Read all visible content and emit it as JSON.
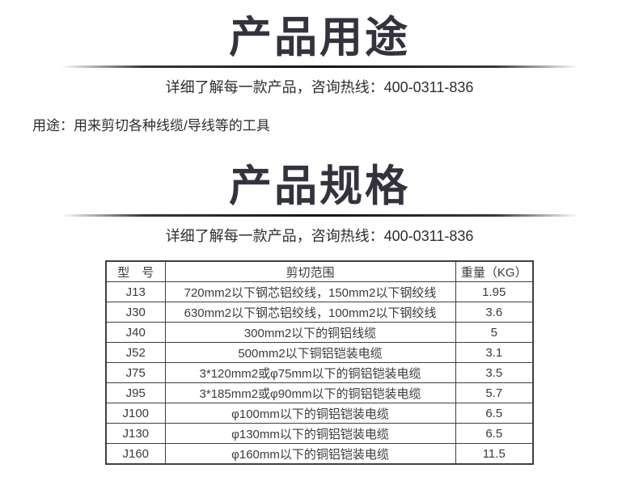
{
  "colors": {
    "title": "#33333d",
    "body_text": "#2d2d2d",
    "table_border": "#3f3f3f",
    "divider": "#141414",
    "background": "#ffffff"
  },
  "usage_section": {
    "title": "产品用途",
    "subtitle": "详细了解每一款产品，咨询热线：400-0311-836",
    "usage_text": "用途：用来剪切各种线缆/导线等的工具"
  },
  "spec_section": {
    "title": "产品规格",
    "subtitle": "详细了解每一款产品，咨询热线：400-0311-836",
    "table": {
      "headers": {
        "model": "型　号",
        "range": "剪切范围",
        "weight": "重量（KG）"
      },
      "rows": [
        {
          "model": "J13",
          "range": "720mm2以下钢芯铝绞线，150mm2以下钢绞线",
          "weight": "1.95"
        },
        {
          "model": "J30",
          "range": "630mm2以下钢芯铝绞线，100mm2以下钢绞线",
          "weight": "3.6"
        },
        {
          "model": "J40",
          "range": "300mm2以下的铜铝线缆",
          "weight": "5"
        },
        {
          "model": "J52",
          "range": "500mm2以下铜铝铠装电缆",
          "weight": "3.1"
        },
        {
          "model": "J75",
          "range": "3*120mm2或φ75mm以下的铜铝铠装电缆",
          "weight": "3.5"
        },
        {
          "model": "J95",
          "range": "3*185mm2或φ90mm以下的铜铝铠装电缆",
          "weight": "5.7"
        },
        {
          "model": "J100",
          "range": "φ100mm以下的铜铝铠装电缆",
          "weight": "6.5"
        },
        {
          "model": "J130",
          "range": "φ130mm以下的铜铝铠装电缆",
          "weight": "6.5"
        },
        {
          "model": "J160",
          "range": "φ160mm以下的铜铝铠装电缆",
          "weight": "11.5"
        }
      ]
    }
  }
}
